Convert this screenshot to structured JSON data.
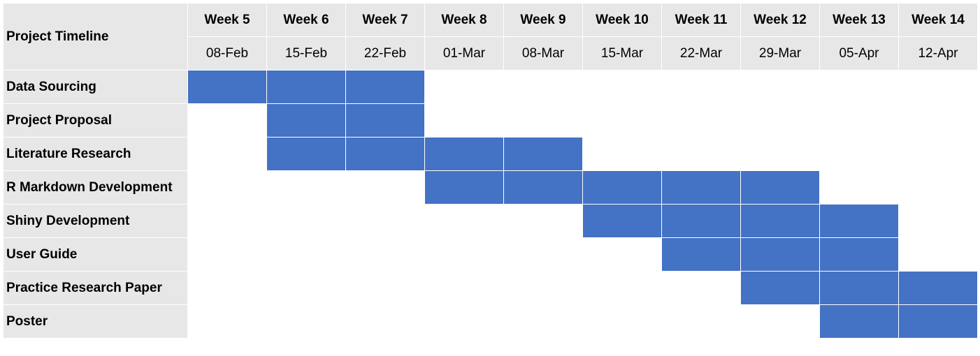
{
  "chart_data": {
    "type": "table",
    "title": "Project Timeline",
    "weeks": [
      "Week 5",
      "Week 6",
      "Week 7",
      "Week 8",
      "Week 9",
      "Week 10",
      "Week 11",
      "Week 12",
      "Week 13",
      "Week 14"
    ],
    "dates": [
      "08-Feb",
      "15-Feb",
      "22-Feb",
      "01-Mar",
      "08-Mar",
      "15-Mar",
      "22-Mar",
      "29-Mar",
      "05-Apr",
      "12-Apr"
    ],
    "tasks": [
      {
        "name": "Data Sourcing",
        "start_week": "Week 5",
        "end_week": "Week 7"
      },
      {
        "name": "Project Proposal",
        "start_week": "Week 6",
        "end_week": "Week 7"
      },
      {
        "name": "Literature Research",
        "start_week": "Week 6",
        "end_week": "Week 9"
      },
      {
        "name": "R Markdown Development",
        "start_week": "Week 8",
        "end_week": "Week 12"
      },
      {
        "name": "Shiny Development",
        "start_week": "Week 10",
        "end_week": "Week 13"
      },
      {
        "name": "User Guide",
        "start_week": "Week 11",
        "end_week": "Week 13"
      },
      {
        "name": "Practice Research Paper",
        "start_week": "Week 12",
        "end_week": "Week 14"
      },
      {
        "name": "Poster",
        "start_week": "Week 13",
        "end_week": "Week 14"
      }
    ],
    "colors": {
      "bar": "#4472c4",
      "header_bg": "#e7e7e7",
      "empty": "#ffffff"
    }
  }
}
